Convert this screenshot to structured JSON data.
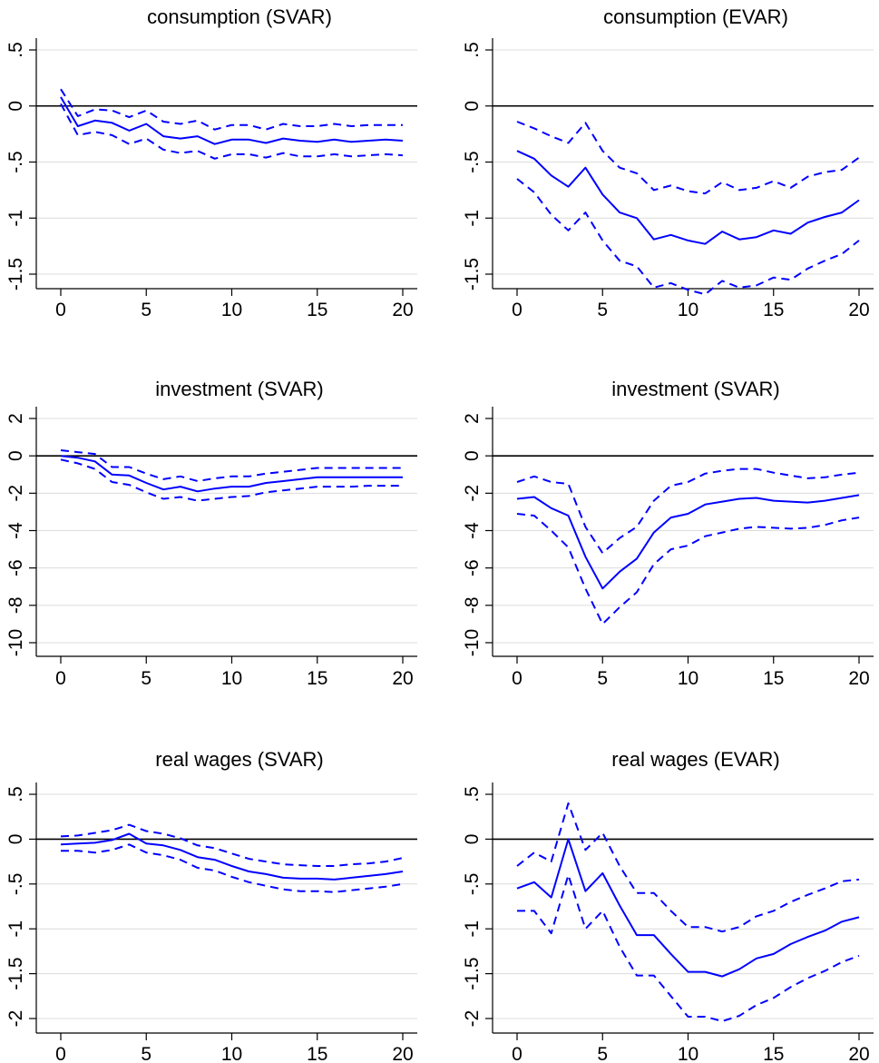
{
  "colors": {
    "series": "#0000ff",
    "zero_line": "#000000",
    "grid": "#dcdcdc"
  },
  "chart_data": [
    {
      "type": "line",
      "title": "consumption (SVAR)",
      "xlim": [
        0,
        20
      ],
      "xticks": [
        0,
        5,
        10,
        15,
        20
      ],
      "ylim": [
        -1.5,
        0.5
      ],
      "yticks": [
        0.5,
        0,
        -0.5,
        -1,
        -1.5
      ],
      "yticklabels": [
        ".5",
        "0",
        "-.5",
        "-1",
        "-1.5"
      ],
      "grid": true,
      "zero_line": true,
      "x": [
        0,
        1,
        2,
        3,
        4,
        5,
        6,
        7,
        8,
        9,
        10,
        11,
        12,
        13,
        14,
        15,
        16,
        17,
        18,
        19,
        20
      ],
      "series": [
        {
          "style": "solid",
          "values": [
            0.08,
            -0.18,
            -0.13,
            -0.15,
            -0.22,
            -0.16,
            -0.27,
            -0.29,
            -0.27,
            -0.34,
            -0.3,
            -0.3,
            -0.33,
            -0.29,
            -0.31,
            -0.32,
            -0.3,
            -0.32,
            -0.31,
            -0.3,
            -0.31
          ]
        },
        {
          "style": "dashed",
          "values": [
            0.15,
            -0.09,
            -0.03,
            -0.04,
            -0.1,
            -0.04,
            -0.14,
            -0.16,
            -0.13,
            -0.21,
            -0.17,
            -0.17,
            -0.21,
            -0.16,
            -0.18,
            -0.18,
            -0.16,
            -0.18,
            -0.17,
            -0.17,
            -0.17
          ]
        },
        {
          "style": "dashed",
          "values": [
            0.02,
            -0.26,
            -0.23,
            -0.26,
            -0.34,
            -0.29,
            -0.39,
            -0.42,
            -0.4,
            -0.47,
            -0.43,
            -0.43,
            -0.46,
            -0.42,
            -0.45,
            -0.45,
            -0.43,
            -0.45,
            -0.44,
            -0.43,
            -0.44
          ]
        }
      ]
    },
    {
      "type": "line",
      "title": "consumption (EVAR)",
      "xlim": [
        0,
        20
      ],
      "xticks": [
        0,
        5,
        10,
        15,
        20
      ],
      "ylim": [
        -1.5,
        0.5
      ],
      "yticks": [
        0.5,
        0,
        -0.5,
        -1,
        -1.5
      ],
      "yticklabels": [
        ".5",
        "0",
        "-.5",
        "-1",
        "-1.5"
      ],
      "grid": true,
      "zero_line": true,
      "x": [
        0,
        1,
        2,
        3,
        4,
        5,
        6,
        7,
        8,
        9,
        10,
        11,
        12,
        13,
        14,
        15,
        16,
        17,
        18,
        19,
        20
      ],
      "series": [
        {
          "style": "solid",
          "values": [
            -0.4,
            -0.47,
            -0.62,
            -0.72,
            -0.55,
            -0.79,
            -0.95,
            -1.0,
            -1.19,
            -1.15,
            -1.2,
            -1.23,
            -1.12,
            -1.19,
            -1.17,
            -1.11,
            -1.14,
            -1.04,
            -0.99,
            -0.95,
            -0.84
          ]
        },
        {
          "style": "dashed",
          "values": [
            -0.14,
            -0.2,
            -0.27,
            -0.33,
            -0.15,
            -0.4,
            -0.55,
            -0.6,
            -0.75,
            -0.71,
            -0.76,
            -0.78,
            -0.68,
            -0.75,
            -0.73,
            -0.67,
            -0.73,
            -0.63,
            -0.59,
            -0.57,
            -0.46
          ]
        },
        {
          "style": "dashed",
          "values": [
            -0.65,
            -0.77,
            -0.97,
            -1.11,
            -0.95,
            -1.2,
            -1.38,
            -1.43,
            -1.62,
            -1.58,
            -1.64,
            -1.68,
            -1.56,
            -1.62,
            -1.6,
            -1.53,
            -1.55,
            -1.45,
            -1.38,
            -1.32,
            -1.2
          ]
        }
      ]
    },
    {
      "type": "line",
      "title": "investment (SVAR)",
      "xlim": [
        0,
        20
      ],
      "xticks": [
        0,
        5,
        10,
        15,
        20
      ],
      "ylim": [
        -10,
        2
      ],
      "yticks": [
        2,
        0,
        -2,
        -4,
        -6,
        -8,
        -10
      ],
      "yticklabels": [
        "2",
        "0",
        "-2",
        "-4",
        "-6",
        "-8",
        "-10"
      ],
      "grid": true,
      "zero_line": true,
      "x": [
        0,
        1,
        2,
        3,
        4,
        5,
        6,
        7,
        8,
        9,
        10,
        11,
        12,
        13,
        14,
        15,
        16,
        17,
        18,
        19,
        20
      ],
      "series": [
        {
          "style": "solid",
          "values": [
            0.0,
            -0.1,
            -0.3,
            -1.0,
            -1.05,
            -1.45,
            -1.8,
            -1.65,
            -1.9,
            -1.75,
            -1.65,
            -1.65,
            -1.45,
            -1.35,
            -1.25,
            -1.15,
            -1.15,
            -1.15,
            -1.15,
            -1.15,
            -1.15
          ]
        },
        {
          "style": "dashed",
          "values": [
            0.3,
            0.2,
            0.1,
            -0.6,
            -0.6,
            -0.95,
            -1.25,
            -1.1,
            -1.35,
            -1.2,
            -1.1,
            -1.1,
            -0.95,
            -0.85,
            -0.75,
            -0.65,
            -0.65,
            -0.65,
            -0.65,
            -0.65,
            -0.65
          ]
        },
        {
          "style": "dashed",
          "values": [
            -0.2,
            -0.4,
            -0.7,
            -1.4,
            -1.55,
            -1.95,
            -2.3,
            -2.2,
            -2.4,
            -2.3,
            -2.2,
            -2.15,
            -1.95,
            -1.85,
            -1.75,
            -1.65,
            -1.65,
            -1.65,
            -1.6,
            -1.6,
            -1.6
          ]
        }
      ]
    },
    {
      "type": "line",
      "title": "investment (SVAR)",
      "xlim": [
        0,
        20
      ],
      "xticks": [
        0,
        5,
        10,
        15,
        20
      ],
      "ylim": [
        -10,
        2
      ],
      "yticks": [
        2,
        0,
        -2,
        -4,
        -6,
        -8,
        -10
      ],
      "yticklabels": [
        "2",
        "0",
        "-2",
        "-4",
        "-6",
        "-8",
        "-10"
      ],
      "grid": true,
      "zero_line": true,
      "x": [
        0,
        1,
        2,
        3,
        4,
        5,
        6,
        7,
        8,
        9,
        10,
        11,
        12,
        13,
        14,
        15,
        16,
        17,
        18,
        19,
        20
      ],
      "series": [
        {
          "style": "solid",
          "values": [
            -2.3,
            -2.2,
            -2.8,
            -3.2,
            -5.4,
            -7.1,
            -6.2,
            -5.5,
            -4.1,
            -3.3,
            -3.1,
            -2.6,
            -2.45,
            -2.3,
            -2.25,
            -2.4,
            -2.45,
            -2.5,
            -2.4,
            -2.25,
            -2.1
          ]
        },
        {
          "style": "dashed",
          "values": [
            -1.4,
            -1.1,
            -1.4,
            -1.5,
            -3.8,
            -5.2,
            -4.4,
            -3.8,
            -2.4,
            -1.6,
            -1.4,
            -0.95,
            -0.8,
            -0.7,
            -0.7,
            -0.9,
            -1.05,
            -1.2,
            -1.15,
            -1.0,
            -0.9
          ]
        },
        {
          "style": "dashed",
          "values": [
            -3.1,
            -3.2,
            -4.0,
            -4.9,
            -7.1,
            -9.0,
            -8.1,
            -7.3,
            -5.8,
            -5.0,
            -4.8,
            -4.3,
            -4.1,
            -3.9,
            -3.8,
            -3.85,
            -3.9,
            -3.85,
            -3.7,
            -3.45,
            -3.3
          ]
        }
      ]
    },
    {
      "type": "line",
      "title": "real wages (SVAR)",
      "xlim": [
        0,
        20
      ],
      "xticks": [
        0,
        5,
        10,
        15,
        20
      ],
      "ylim": [
        -2,
        0.5
      ],
      "yticks": [
        0.5,
        0,
        -0.5,
        -1,
        -1.5,
        -2
      ],
      "yticklabels": [
        ".5",
        "0",
        "-.5",
        "-1",
        "-1.5",
        "-2"
      ],
      "grid": true,
      "zero_line": true,
      "x": [
        0,
        1,
        2,
        3,
        4,
        5,
        6,
        7,
        8,
        9,
        10,
        11,
        12,
        13,
        14,
        15,
        16,
        17,
        18,
        19,
        20
      ],
      "series": [
        {
          "style": "solid",
          "values": [
            -0.06,
            -0.05,
            -0.04,
            -0.01,
            0.06,
            -0.05,
            -0.07,
            -0.12,
            -0.2,
            -0.23,
            -0.3,
            -0.36,
            -0.39,
            -0.43,
            -0.44,
            -0.44,
            -0.45,
            -0.43,
            -0.41,
            -0.39,
            -0.36
          ]
        },
        {
          "style": "dashed",
          "values": [
            0.03,
            0.04,
            0.07,
            0.1,
            0.16,
            0.09,
            0.06,
            0.01,
            -0.07,
            -0.1,
            -0.16,
            -0.22,
            -0.25,
            -0.28,
            -0.29,
            -0.3,
            -0.3,
            -0.28,
            -0.27,
            -0.25,
            -0.21
          ]
        },
        {
          "style": "dashed",
          "values": [
            -0.13,
            -0.13,
            -0.15,
            -0.12,
            -0.06,
            -0.15,
            -0.18,
            -0.23,
            -0.32,
            -0.35,
            -0.42,
            -0.48,
            -0.52,
            -0.56,
            -0.58,
            -0.58,
            -0.59,
            -0.57,
            -0.55,
            -0.53,
            -0.5
          ]
        }
      ]
    },
    {
      "type": "line",
      "title": "real wages (EVAR)",
      "xlim": [
        0,
        20
      ],
      "xticks": [
        0,
        5,
        10,
        15,
        20
      ],
      "ylim": [
        -2,
        0.5
      ],
      "yticks": [
        0.5,
        0,
        -0.5,
        -1,
        -1.5,
        -2
      ],
      "yticklabels": [
        ".5",
        "0",
        "-.5",
        "-1",
        "-1.5",
        "-2"
      ],
      "grid": true,
      "zero_line": true,
      "x": [
        0,
        1,
        2,
        3,
        4,
        5,
        6,
        7,
        8,
        9,
        10,
        11,
        12,
        13,
        14,
        15,
        16,
        17,
        18,
        19,
        20
      ],
      "series": [
        {
          "style": "solid",
          "values": [
            -0.55,
            -0.48,
            -0.65,
            0.0,
            -0.58,
            -0.38,
            -0.74,
            -1.07,
            -1.07,
            -1.28,
            -1.48,
            -1.48,
            -1.53,
            -1.45,
            -1.33,
            -1.28,
            -1.17,
            -1.09,
            -1.02,
            -0.92,
            -0.87
          ]
        },
        {
          "style": "dashed",
          "values": [
            -0.3,
            -0.15,
            -0.25,
            0.4,
            -0.12,
            0.07,
            -0.3,
            -0.6,
            -0.6,
            -0.8,
            -0.98,
            -0.98,
            -1.03,
            -0.98,
            -0.86,
            -0.8,
            -0.7,
            -0.62,
            -0.55,
            -0.47,
            -0.45
          ]
        },
        {
          "style": "dashed",
          "values": [
            -0.8,
            -0.8,
            -1.05,
            -0.4,
            -1.0,
            -0.8,
            -1.2,
            -1.52,
            -1.52,
            -1.75,
            -1.98,
            -1.98,
            -2.03,
            -1.97,
            -1.85,
            -1.77,
            -1.65,
            -1.55,
            -1.47,
            -1.37,
            -1.3
          ]
        }
      ]
    }
  ]
}
